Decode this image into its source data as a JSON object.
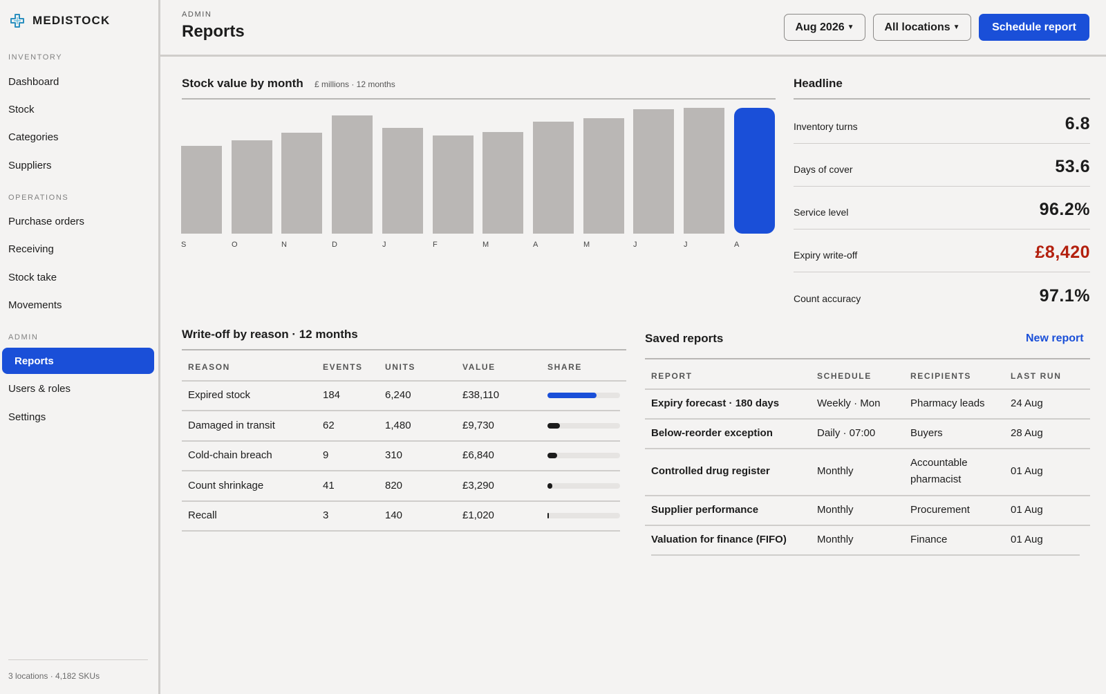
{
  "brand": {
    "name": "MEDISTOCK"
  },
  "sidebar": {
    "sections": [
      {
        "label": "INVENTORY",
        "items": [
          "Dashboard",
          "Stock",
          "Categories",
          "Suppliers"
        ]
      },
      {
        "label": "OPERATIONS",
        "items": [
          "Purchase orders",
          "Receiving",
          "Stock take",
          "Movements"
        ]
      },
      {
        "label": "ADMIN",
        "items": [
          "Reports",
          "Users & roles",
          "Settings"
        ]
      }
    ],
    "active_item": "Reports",
    "footer": "3 locations · 4,182 SKUs"
  },
  "header": {
    "breadcrumb": "ADMIN",
    "title": "Reports",
    "period_label": "Aug 2026",
    "location_label": "All locations",
    "schedule_button": "Schedule report"
  },
  "stock_chart": {
    "title": "Stock value by month",
    "subtitle": "£ millions · 12 months"
  },
  "chart_data": {
    "type": "bar",
    "title": "Stock value by month",
    "subtitle": "£ millions · 12 months",
    "categories": [
      "S",
      "O",
      "N",
      "D",
      "J",
      "F",
      "M",
      "A",
      "M",
      "J",
      "J",
      "A"
    ],
    "values": [
      0.7,
      0.74,
      0.8,
      0.94,
      0.84,
      0.78,
      0.81,
      0.89,
      0.92,
      0.99,
      1.0,
      1.0
    ],
    "highlight_index": 11,
    "highlight_color": "#1a4fd8",
    "bar_color": "#bab7b5",
    "ylim": [
      0,
      1.0
    ],
    "grid": false,
    "note": "values relative, no y axis shown"
  },
  "headline": {
    "title": "Headline",
    "kpis": [
      {
        "label": "Inventory turns",
        "value": "6.8"
      },
      {
        "label": "Days of cover",
        "value": "53.6"
      },
      {
        "label": "Service level",
        "value": "96.2%"
      },
      {
        "label": "Expiry write-off",
        "value": "£8,420",
        "alert": true
      },
      {
        "label": "Count accuracy",
        "value": "97.1%"
      }
    ]
  },
  "writeoff": {
    "title": "Write-off by reason · 12 months",
    "columns": [
      "REASON",
      "EVENTS",
      "UNITS",
      "VALUE",
      "SHARE"
    ],
    "rows": [
      {
        "reason": "Expired stock",
        "events": "184",
        "units": "6,240",
        "value": "£38,110",
        "share": 0.64
      },
      {
        "reason": "Damaged in transit",
        "events": "62",
        "units": "1,480",
        "value": "£9,730",
        "share": 0.16
      },
      {
        "reason": "Cold-chain breach",
        "events": "9",
        "units": "310",
        "value": "£6,840",
        "share": 0.12
      },
      {
        "reason": "Count shrinkage",
        "events": "41",
        "units": "820",
        "value": "£3,290",
        "share": 0.06
      },
      {
        "reason": "Recall",
        "events": "3",
        "units": "140",
        "value": "£1,020",
        "share": 0.02
      }
    ]
  },
  "saved_reports": {
    "title": "Saved reports",
    "new_label": "New report",
    "columns": [
      "REPORT",
      "SCHEDULE",
      "RECIPIENTS",
      "LAST RUN"
    ],
    "rows": [
      {
        "report": "Expiry forecast · 180 days",
        "schedule": "Weekly · Mon",
        "recipients": "Pharmacy leads",
        "last_run": "24 Aug"
      },
      {
        "report": "Below-reorder exception",
        "schedule": "Daily · 07:00",
        "recipients": "Buyers",
        "last_run": "28 Aug"
      },
      {
        "report": "Controlled drug register",
        "schedule": "Monthly",
        "recipients": "Accountable pharmacist",
        "last_run": "01 Aug"
      },
      {
        "report": "Supplier performance",
        "schedule": "Monthly",
        "recipients": "Procurement",
        "last_run": "01 Aug"
      },
      {
        "report": "Valuation for finance (FIFO)",
        "schedule": "Monthly",
        "recipients": "Finance",
        "last_run": "01 Aug"
      }
    ]
  }
}
